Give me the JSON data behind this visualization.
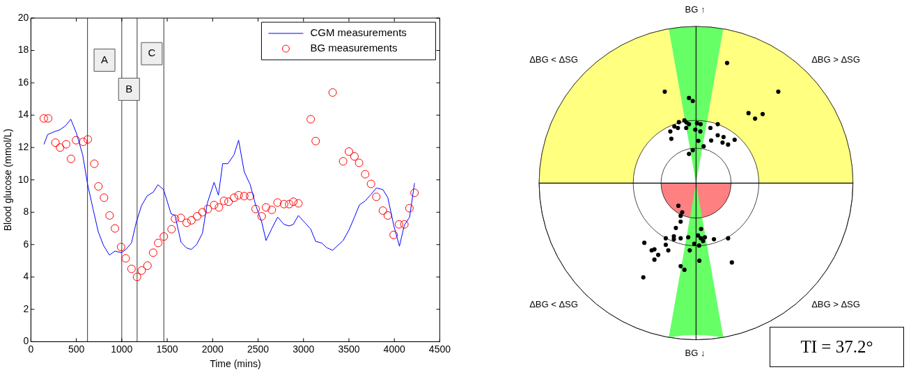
{
  "chart_data": [
    {
      "type": "line",
      "xlabel": "Time (mins)",
      "ylabel": "Blood glucose (mmol/L)",
      "xlim": [
        0,
        4500
      ],
      "ylim": [
        0,
        20
      ],
      "xticks": [
        0,
        500,
        1000,
        1500,
        2000,
        2500,
        3000,
        3500,
        4000,
        4500
      ],
      "yticks": [
        0,
        2,
        4,
        6,
        8,
        10,
        12,
        14,
        16,
        18,
        20
      ],
      "grid": false,
      "legend": "top right",
      "series": [
        {
          "name": "CGM measurements",
          "type": "line",
          "color": "#0000ff",
          "marker": "none",
          "line_style": "solid",
          "x": [
            144,
            184,
            267,
            321,
            382,
            439,
            500,
            570,
            623,
            682,
            741,
            799,
            864,
            925,
            997,
            1045,
            1107,
            1158,
            1217,
            1278,
            1348,
            1398,
            1460,
            1543,
            1586,
            1652,
            1711,
            1765,
            1824,
            1888,
            1941,
            2016,
            2064,
            2110,
            2168,
            2235,
            2286,
            2348,
            2414,
            2473,
            2540,
            2588,
            2652,
            2716,
            2786,
            2842,
            2888,
            2944,
            3016,
            3080,
            3134,
            3200,
            3259,
            3321,
            3436,
            3500,
            3561,
            3615,
            3679,
            3743,
            3802,
            3874,
            3928,
            3995,
            4056,
            4110,
            4168,
            4222
          ],
          "values": [
            12.2,
            12.8,
            13.0,
            13.1,
            13.35,
            13.75,
            12.9,
            11.55,
            9.75,
            8.25,
            6.8,
            5.95,
            5.35,
            5.6,
            5.5,
            5.7,
            6.1,
            7.35,
            8.4,
            9.0,
            9.25,
            9.7,
            9.4,
            7.9,
            7.8,
            6.15,
            5.8,
            5.7,
            6.0,
            6.7,
            8.55,
            9.85,
            9.05,
            11.0,
            11.0,
            11.55,
            12.45,
            10.5,
            9.7,
            8.45,
            7.4,
            6.25,
            7.0,
            7.7,
            7.25,
            7.15,
            7.25,
            7.8,
            7.35,
            6.95,
            6.2,
            6.1,
            5.8,
            5.65,
            6.25,
            6.9,
            7.7,
            8.45,
            8.7,
            9.1,
            9.5,
            9.4,
            8.9,
            7.15,
            5.9,
            7.2,
            7.7,
            9.8
          ]
        },
        {
          "name": "BG measurements",
          "type": "scatter",
          "color": "#ff0000",
          "marker": "circle",
          "x": [
            142,
            190,
            270,
            321,
            388,
            441,
            497,
            575,
            626,
            698,
            743,
            805,
            866,
            925,
            992,
            1043,
            1107,
            1168,
            1219,
            1283,
            1345,
            1401,
            1463,
            1548,
            1586,
            1650,
            1714,
            1767,
            1829,
            1888,
            1947,
            2016,
            2070,
            2125,
            2175,
            2235,
            2286,
            2348,
            2412,
            2473,
            2540,
            2588,
            2652,
            2714,
            2786,
            2842,
            2888,
            2944,
            3080,
            3134,
            3321,
            3436,
            3500,
            3561,
            3612,
            3679,
            3743,
            3802,
            3874,
            3928,
            3992,
            4051,
            4110,
            4166,
            4222
          ],
          "values": [
            13.8,
            13.8,
            12.3,
            12.0,
            12.2,
            11.3,
            12.45,
            12.35,
            12.5,
            11.0,
            9.6,
            8.9,
            7.8,
            7.0,
            5.85,
            5.15,
            4.5,
            4.0,
            4.4,
            4.7,
            5.5,
            6.1,
            6.5,
            6.95,
            7.6,
            7.65,
            7.35,
            7.5,
            7.75,
            8.0,
            8.2,
            8.45,
            8.3,
            8.7,
            8.65,
            8.9,
            9.05,
            9.0,
            9.0,
            8.2,
            7.75,
            8.3,
            8.15,
            8.6,
            8.5,
            8.5,
            8.65,
            8.55,
            13.75,
            12.4,
            15.4,
            11.15,
            11.75,
            11.45,
            11.05,
            10.35,
            9.75,
            8.95,
            8.1,
            7.8,
            6.6,
            7.25,
            7.25,
            8.25,
            9.2
          ]
        }
      ],
      "ref_lines": [
        {
          "axis": "x",
          "value": 623,
          "color": "#000000"
        },
        {
          "axis": "x",
          "value": 1000,
          "color": "#000000"
        },
        {
          "axis": "x",
          "value": 1169,
          "color": "#000000"
        },
        {
          "axis": "x",
          "value": 1463,
          "color": "#000000"
        }
      ],
      "annotations": [
        {
          "text": "A",
          "x": 810,
          "y": 17.4
        },
        {
          "text": "B",
          "x": 1080,
          "y": 15.6
        },
        {
          "text": "C",
          "x": 1330,
          "y": 17.8
        }
      ]
    },
    {
      "type": "other",
      "annotations": [
        "BG ↑",
        "ΔBG < ΔSG",
        "ΔBG > ΔSG",
        "ΔBG < ΔSG",
        "ΔBG > ΔSG",
        "BG ↓",
        "TI = 37.2°"
      ]
    }
  ]
}
